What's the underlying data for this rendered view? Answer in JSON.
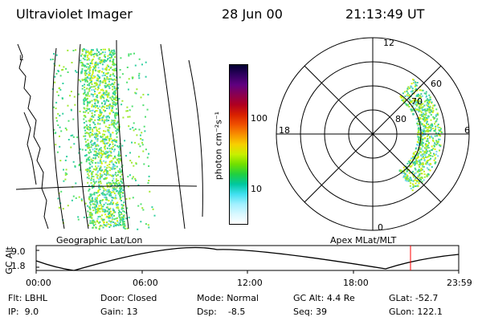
{
  "header": {
    "instrument": "Ultraviolet Imager",
    "date": "28 Jun 00",
    "time": "21:13:49 UT"
  },
  "colorbar": {
    "unit_label": "photon cm⁻²s⁻¹",
    "ticks": [
      "100",
      "10"
    ],
    "colors": [
      "#000030",
      "#300060",
      "#600080",
      "#8a0050",
      "#b00020",
      "#d82000",
      "#f05000",
      "#f89000",
      "#f8d000",
      "#c8f000",
      "#70e000",
      "#20d040",
      "#00c8a0",
      "#40e0f0",
      "#a0f0ff",
      "#d8f8ff",
      "#ffffff"
    ]
  },
  "left_panel": {
    "caption": "Geographic Lat/Lon"
  },
  "polar_panel": {
    "caption": "Apex MLat/MLT",
    "mlt_labels": {
      "top": "12",
      "left": "18",
      "right": "6",
      "bottom": "0"
    },
    "lat_labels": [
      "60",
      "70",
      "80"
    ]
  },
  "altitude_plot": {
    "ylabel": "GC Alt",
    "yticks": [
      "9.0",
      "1.8"
    ],
    "xticks": [
      "00:00",
      "06:00",
      "12:00",
      "18:00",
      "23:59"
    ],
    "marker_color": "#ff0000"
  },
  "info": {
    "flt": {
      "label": "Flt:",
      "value": "LBHL"
    },
    "ip": {
      "label": "IP:",
      "value": "9.0"
    },
    "door": {
      "label": "Door:",
      "value": "Closed"
    },
    "gain": {
      "label": "Gain:",
      "value": "13"
    },
    "mode": {
      "label": "Mode:",
      "value": "Normal"
    },
    "dsp": {
      "label": "Dsp:",
      "value": "-8.5"
    },
    "gcalt": {
      "label": "GC Alt:",
      "value": "4.4 Re"
    },
    "seq": {
      "label": "Seq:",
      "value": "39"
    },
    "glat": {
      "label": "GLat:",
      "value": "-52.7"
    },
    "glon": {
      "label": "GLon:",
      "value": "122.1"
    }
  }
}
